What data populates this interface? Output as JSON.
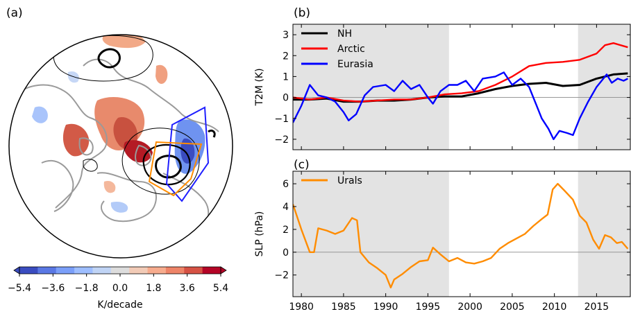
{
  "panels": {
    "a": {
      "label": "(a)"
    },
    "b": {
      "label": "(b)"
    },
    "c": {
      "label": "(c)"
    }
  },
  "colorbar": {
    "ticks": [
      "−5.4",
      "−3.6",
      "−1.8",
      "0.0",
      "1.8",
      "3.6",
      "5.4"
    ],
    "label": "K/decade",
    "colors": [
      "#3a4cc0",
      "#5a78e4",
      "#7b9ff9",
      "#9ebeff",
      "#c0d4f5",
      "#dddddd",
      "#f2cbb7",
      "#f7ac8e",
      "#ee8468",
      "#d65244",
      "#b40426"
    ]
  },
  "map": {
    "box_colors": {
      "eurasia": "#1f1fff",
      "urals": "#ff8c00"
    }
  },
  "chart_data": [
    {
      "type": "line",
      "panel": "(b)",
      "ylabel": "T2M (K)",
      "ylim": [
        -2.5,
        3.5
      ],
      "xlim": [
        1979,
        2019
      ],
      "yticks": [
        "−2",
        "−1",
        "0",
        "1",
        "2",
        "3"
      ],
      "shaded_periods": [
        [
          1979,
          1997.5
        ],
        [
          2012.8,
          2019
        ]
      ],
      "legend": "top-left",
      "series": [
        {
          "name": "NH",
          "color": "#000000",
          "x": [
            1979,
            1981,
            1983,
            1985,
            1987,
            1989,
            1991,
            1993,
            1995,
            1997,
            1999,
            2001,
            2003,
            2005,
            2007,
            2009,
            2011,
            2013,
            2015,
            2017,
            2018.7
          ],
          "y": [
            -0.1,
            -0.1,
            -0.05,
            -0.2,
            -0.2,
            -0.15,
            -0.15,
            -0.1,
            0.0,
            0.05,
            0.05,
            0.2,
            0.4,
            0.55,
            0.65,
            0.7,
            0.55,
            0.6,
            0.9,
            1.1,
            1.15
          ]
        },
        {
          "name": "Arctic",
          "color": "#ff0000",
          "x": [
            1979,
            1981,
            1983,
            1985,
            1987,
            1989,
            1991,
            1993,
            1995,
            1997,
            1999,
            2001,
            2003,
            2005,
            2007,
            2009,
            2011,
            2013,
            2015,
            2016,
            2017,
            2018.7
          ],
          "y": [
            0.0,
            -0.1,
            0.0,
            -0.15,
            -0.2,
            -0.15,
            -0.1,
            -0.1,
            0.0,
            0.15,
            0.2,
            0.3,
            0.6,
            1.0,
            1.5,
            1.65,
            1.7,
            1.8,
            2.1,
            2.5,
            2.6,
            2.4
          ]
        },
        {
          "name": "Eurasia",
          "color": "#0000ff",
          "x": [
            1979,
            1980,
            1981,
            1982,
            1983,
            1984,
            1985,
            1985.6,
            1986.5,
            1987.5,
            1988.5,
            1990,
            1991,
            1992,
            1993,
            1994,
            1995,
            1995.6,
            1996.5,
            1997.5,
            1998.5,
            1999.5,
            2000.5,
            2001.5,
            2003,
            2004,
            2005,
            2006,
            2007,
            2007.8,
            2008.5,
            2009.3,
            2009.9,
            2010.6,
            2011.5,
            2012.2,
            2013,
            2014,
            2015,
            2015.6,
            2016.2,
            2016.8,
            2017.5,
            2018.2,
            2018.7
          ],
          "y": [
            -1.2,
            -0.4,
            0.6,
            0.1,
            0.0,
            -0.2,
            -0.7,
            -1.1,
            -0.8,
            0.1,
            0.5,
            0.6,
            0.3,
            0.8,
            0.4,
            0.6,
            0.0,
            -0.3,
            0.3,
            0.6,
            0.6,
            0.8,
            0.3,
            0.9,
            1.0,
            1.2,
            0.6,
            0.9,
            0.5,
            -0.3,
            -1.0,
            -1.5,
            -2.0,
            -1.6,
            -1.7,
            -1.8,
            -1.0,
            -0.2,
            0.5,
            0.8,
            1.1,
            0.7,
            0.9,
            0.8,
            0.9
          ]
        }
      ]
    },
    {
      "type": "line",
      "panel": "(c)",
      "ylabel": "SLP (hPa)",
      "ylim": [
        -3.9,
        7.1
      ],
      "xlim": [
        1979,
        2019
      ],
      "xticks": [
        "1980",
        "1985",
        "1990",
        "1995",
        "2000",
        "2005",
        "2010",
        "2015"
      ],
      "yticks": [
        "−2",
        "0",
        "2",
        "4",
        "6"
      ],
      "shaded_periods": [
        [
          1979,
          1997.5
        ],
        [
          2012.8,
          2019
        ]
      ],
      "legend": "top-left",
      "series": [
        {
          "name": "Urals",
          "color": "#ff8c00",
          "x": [
            1979,
            1980,
            1981,
            1981.5,
            1982,
            1983,
            1984,
            1985,
            1986,
            1986.6,
            1987,
            1988,
            1989,
            1990,
            1990.6,
            1991,
            1992,
            1993,
            1994,
            1995,
            1995.6,
            1996.5,
            1997.5,
            1998.5,
            1999.5,
            2000.5,
            2001.5,
            2002.5,
            2003.5,
            2004.5,
            2005.5,
            2006.5,
            2007.5,
            2008.5,
            2009.2,
            2009.8,
            2010.4,
            2011.2,
            2012.2,
            2013.0,
            2013.8,
            2014.6,
            2015.3,
            2016.0,
            2016.7,
            2017.4,
            2018.0,
            2018.7
          ],
          "y": [
            4.2,
            2.0,
            0.0,
            0.0,
            2.1,
            1.9,
            1.6,
            1.9,
            3.0,
            2.8,
            0.0,
            -0.9,
            -1.4,
            -2.0,
            -3.1,
            -2.4,
            -1.9,
            -1.3,
            -0.8,
            -0.7,
            0.4,
            -0.2,
            -0.8,
            -0.5,
            -0.9,
            -1.0,
            -0.8,
            -0.5,
            0.3,
            0.8,
            1.2,
            1.6,
            2.3,
            2.9,
            3.3,
            5.5,
            6.0,
            5.4,
            4.6,
            3.2,
            2.6,
            1.1,
            0.3,
            1.5,
            1.3,
            0.8,
            0.9,
            0.3
          ]
        }
      ]
    }
  ]
}
